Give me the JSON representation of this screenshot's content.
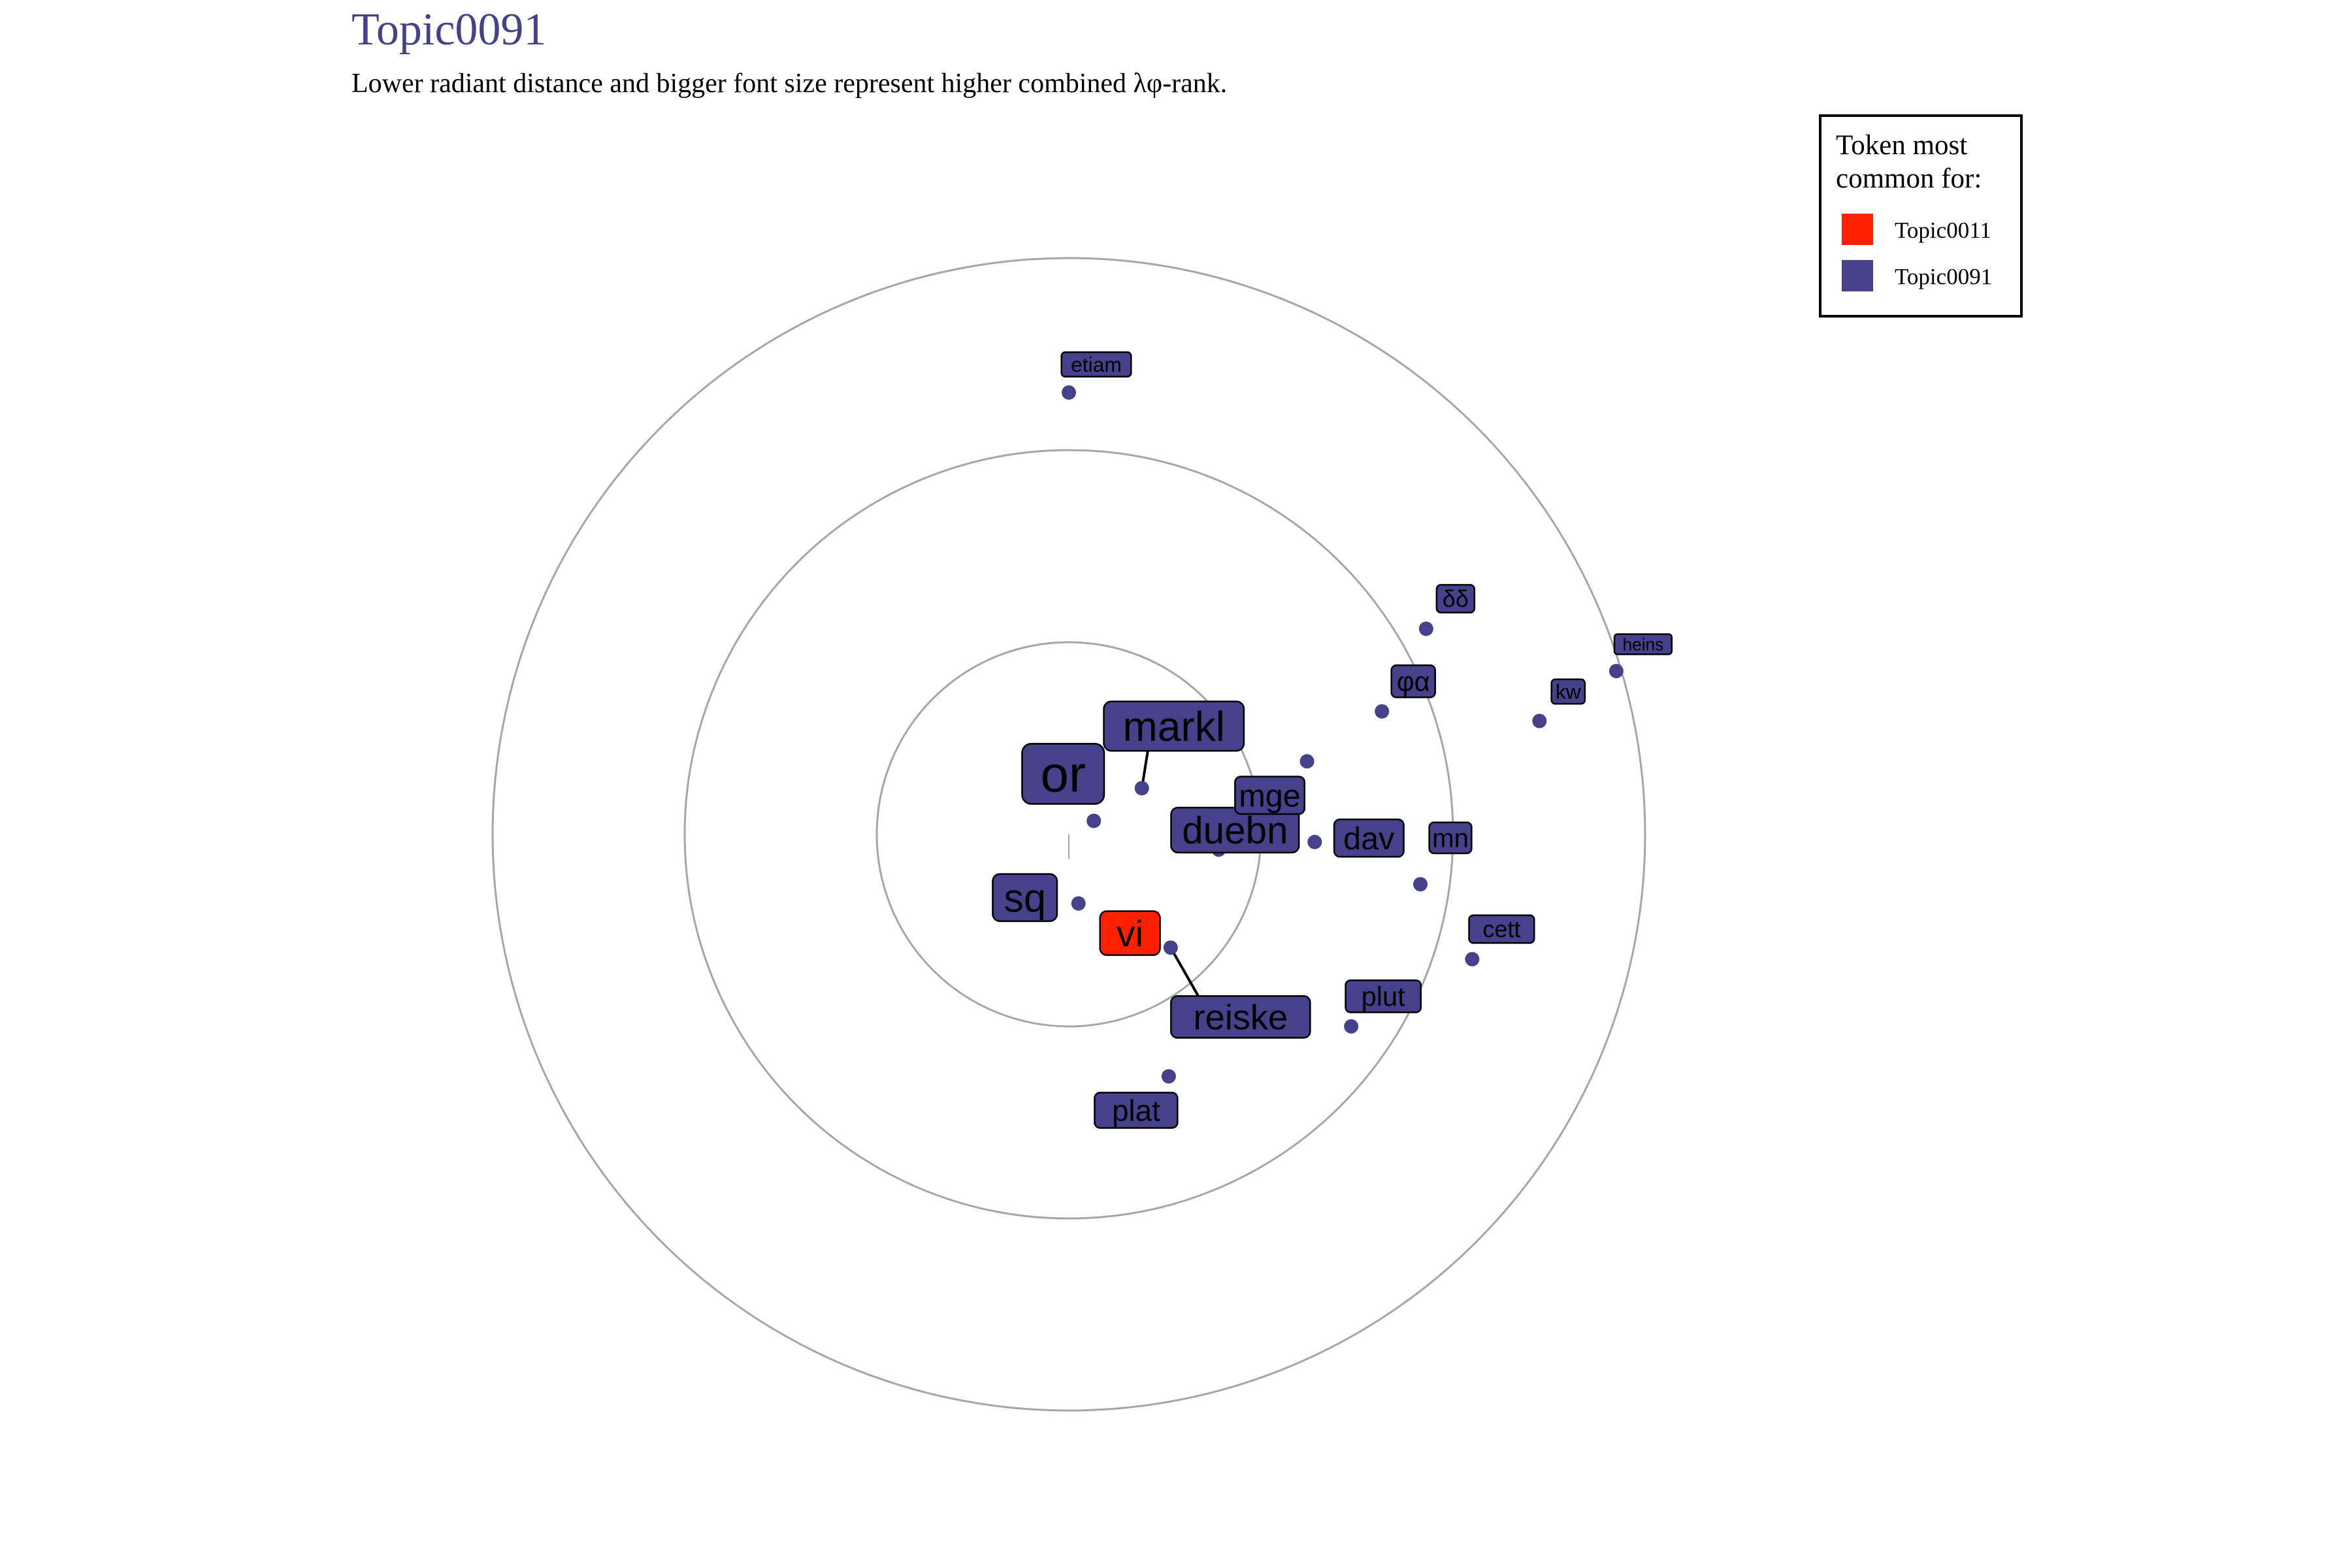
{
  "chart_data": {
    "type": "scatter",
    "title": "Topic0091",
    "subtitle": "Lower radiant distance and bigger font size represent higher combined λφ-rank.",
    "legend": {
      "title_lines": [
        "Token most",
        "common for:"
      ],
      "entries": [
        {
          "name": "Topic0011",
          "color": "#ff2000"
        },
        {
          "name": "Topic0091",
          "color": "#46418a"
        }
      ],
      "placement": "top-right"
    },
    "rings": [
      1,
      2,
      3
    ],
    "grid": false,
    "points": [
      {
        "label": "or",
        "x": 0.13,
        "y": 0.07,
        "size": 5.0,
        "topic": "Topic0091"
      },
      {
        "label": "markl",
        "x": 0.38,
        "y": 0.24,
        "size": 4.0,
        "topic": "Topic0091"
      },
      {
        "label": "sq",
        "x": 0.05,
        "y": -0.36,
        "size": 3.8,
        "topic": "Topic0091"
      },
      {
        "label": "duebn",
        "x": 0.78,
        "y": -0.08,
        "size": 3.6,
        "topic": "Topic0091"
      },
      {
        "label": "vi",
        "x": 0.23,
        "y": -0.45,
        "size": 3.5,
        "topic": "Topic0011"
      },
      {
        "label": "reiske",
        "x": 0.53,
        "y": -0.59,
        "size": 3.3,
        "topic": "Topic0091"
      },
      {
        "label": "mge",
        "x": 1.24,
        "y": 0.38,
        "size": 2.9,
        "topic": "Topic0091"
      },
      {
        "label": "dav",
        "x": 1.28,
        "y": -0.04,
        "size": 2.9,
        "topic": "Topic0091"
      },
      {
        "label": "plat",
        "x": 0.52,
        "y": -1.26,
        "size": 2.7,
        "topic": "Topic0091"
      },
      {
        "label": "plut",
        "x": 1.47,
        "y": -1.0,
        "size": 2.4,
        "topic": "Topic0091"
      },
      {
        "label": "φα",
        "x": 1.63,
        "y": 0.64,
        "size": 2.4,
        "topic": "Topic0091"
      },
      {
        "label": "mn",
        "x": 1.83,
        "y": -0.26,
        "size": 2.3,
        "topic": "Topic0091"
      },
      {
        "label": "cett",
        "x": 2.1,
        "y": -0.65,
        "size": 2.0,
        "topic": "Topic0091"
      },
      {
        "label": "δδ",
        "x": 1.86,
        "y": 1.07,
        "size": 2.0,
        "topic": "Topic0091"
      },
      {
        "label": "kw",
        "x": 2.45,
        "y": 0.59,
        "size": 1.7,
        "topic": "Topic0091"
      },
      {
        "label": "etiam",
        "x": 0.0,
        "y": 2.3,
        "size": 1.7,
        "topic": "Topic0091"
      },
      {
        "label": "heins",
        "x": 2.85,
        "y": 0.85,
        "size": 1.3,
        "topic": "Topic0091"
      }
    ]
  }
}
